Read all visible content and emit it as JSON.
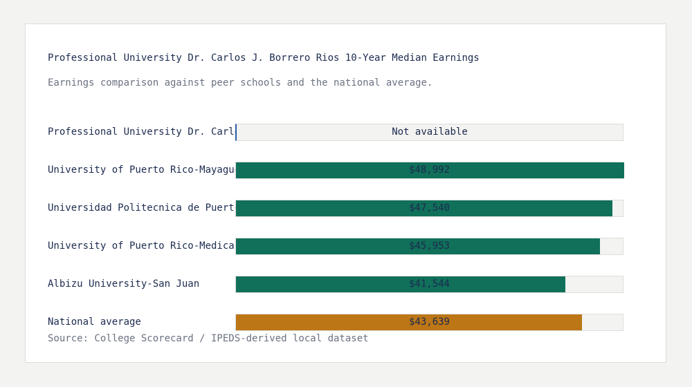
{
  "colors": {
    "peer": "#10705a",
    "national": "#bd7616",
    "track": "#f3f3f1"
  },
  "chart_data": {
    "type": "bar",
    "orientation": "horizontal",
    "title": "Professional University Dr. Carlos J. Borrero Rios 10-Year Median Earnings",
    "subtitle": "Earnings comparison against peer schools and the national average.",
    "source": "Source: College Scorecard / IPEDS-derived local dataset",
    "xlim": [
      0,
      48992
    ],
    "bars": [
      {
        "label": "Professional University Dr. Carlos J. Borrero Rios",
        "value": null,
        "display": "Not available",
        "kind": "missing"
      },
      {
        "label": "University of Puerto Rico-Mayaguez",
        "value": 48992,
        "display": "$48,992",
        "kind": "peer"
      },
      {
        "label": "Universidad Politecnica de Puerto Rico",
        "value": 47540,
        "display": "$47,540",
        "kind": "peer"
      },
      {
        "label": "University of Puerto Rico-Medical Sciences",
        "value": 45953,
        "display": "$45,953",
        "kind": "peer"
      },
      {
        "label": "Albizu University-San Juan",
        "value": 41544,
        "display": "$41,544",
        "kind": "peer"
      },
      {
        "label": "National average",
        "value": 43639,
        "display": "$43,639",
        "kind": "national"
      }
    ]
  }
}
